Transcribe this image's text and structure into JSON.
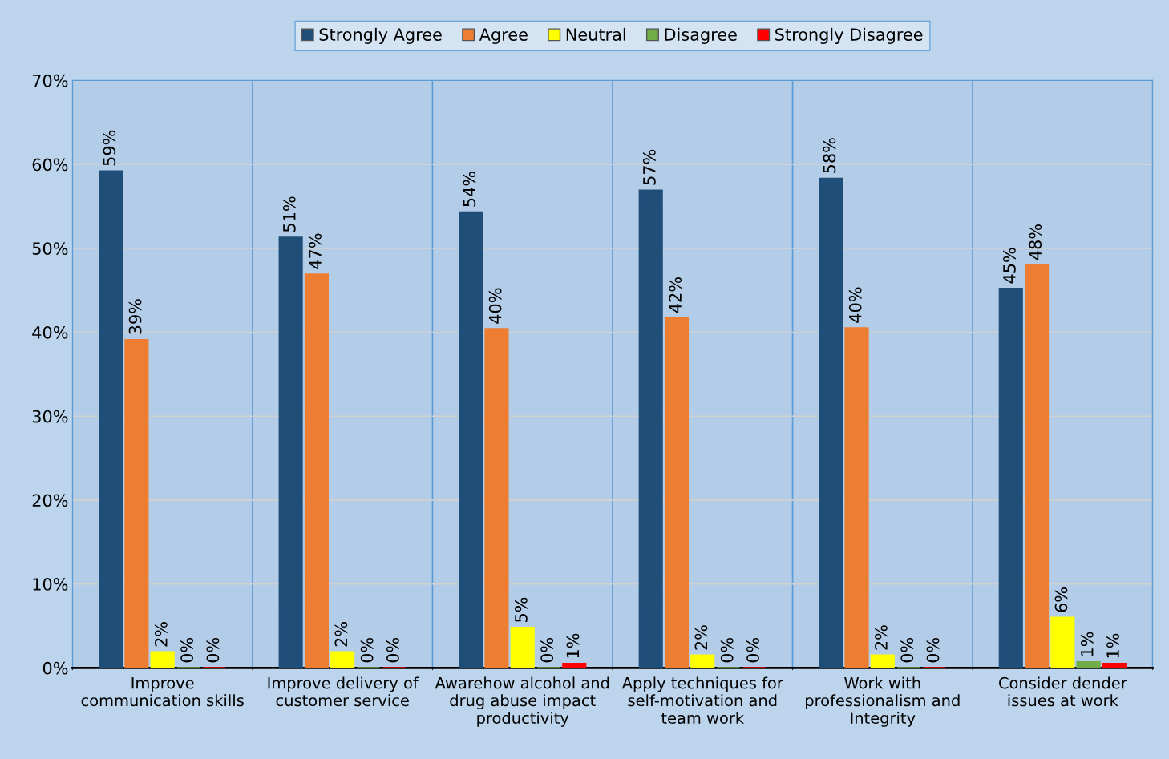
{
  "chart_data": {
    "type": "bar",
    "categories": [
      "Improve\ncommunication skills",
      "Improve delivery of\ncustomer service",
      "Awarehow alcohol and\ndrug abuse impact\nproductivity",
      "Apply techniques for\nself-motivation and\nteam work",
      "Work with\nprofessionalism and\nIntegrity",
      "Consider dender\nissues at work"
    ],
    "series": [
      {
        "name": "Strongly Agree",
        "color": "#1f4e79",
        "values": [
          59.2,
          51.3,
          54.3,
          56.9,
          58.3,
          45.2
        ],
        "value_labels": [
          "59%",
          "51%",
          "54%",
          "57%",
          "58%",
          "45%"
        ]
      },
      {
        "name": "Agree",
        "color": "#ed7d31",
        "values": [
          39.1,
          46.9,
          40.4,
          41.7,
          40.5,
          48.0
        ],
        "value_labels": [
          "39%",
          "47%",
          "40%",
          "42%",
          "40%",
          "48%"
        ]
      },
      {
        "name": "Neutral",
        "color": "#ffff00",
        "values": [
          1.9,
          1.9,
          4.8,
          1.5,
          1.5,
          6.0
        ],
        "value_labels": [
          "2%",
          "2%",
          "5%",
          "2%",
          "2%",
          "6%"
        ]
      },
      {
        "name": "Disagree",
        "color": "#70ad47",
        "values": [
          0,
          0,
          0,
          0,
          0,
          0.7
        ],
        "value_labels": [
          "0%",
          "0%",
          "0%",
          "0%",
          "0%",
          "1%"
        ]
      },
      {
        "name": "Strongly Disagree",
        "color": "#ff0000",
        "values": [
          0,
          0,
          0.5,
          0,
          0,
          0.5
        ],
        "value_labels": [
          "0%",
          "0%",
          "1%",
          "0%",
          "0%",
          "1%"
        ]
      }
    ],
    "ylim": [
      0,
      70
    ],
    "yticks": [
      {
        "value": 0,
        "label": "0%"
      },
      {
        "value": 10,
        "label": "10%"
      },
      {
        "value": 20,
        "label": "20%"
      },
      {
        "value": 30,
        "label": "30%"
      },
      {
        "value": 40,
        "label": "40%"
      },
      {
        "value": 50,
        "label": "50%"
      },
      {
        "value": 60,
        "label": "60%"
      },
      {
        "value": 70,
        "label": "70%"
      }
    ],
    "grid": true,
    "legend": "top"
  }
}
